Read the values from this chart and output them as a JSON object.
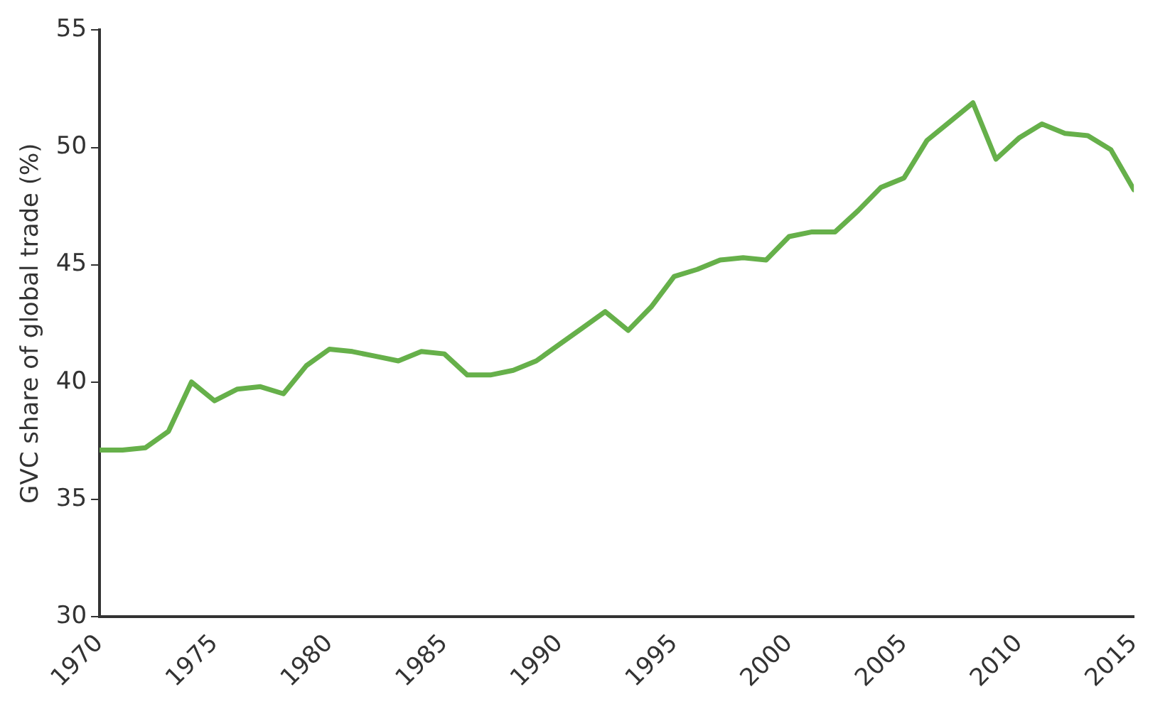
{
  "chart_data": {
    "type": "line",
    "ylabel": "GVC share of global trade (%)",
    "x": [
      1970,
      1971,
      1972,
      1973,
      1974,
      1975,
      1976,
      1977,
      1978,
      1979,
      1980,
      1981,
      1982,
      1983,
      1984,
      1985,
      1986,
      1987,
      1988,
      1989,
      1990,
      1991,
      1992,
      1993,
      1994,
      1995,
      1996,
      1997,
      1998,
      1999,
      2000,
      2001,
      2002,
      2003,
      2004,
      2005,
      2006,
      2007,
      2008,
      2009,
      2010,
      2011,
      2012,
      2013,
      2014,
      2015
    ],
    "series": [
      {
        "color": "#66b04a",
        "values": [
          37.1,
          37.1,
          37.2,
          37.9,
          40.0,
          39.2,
          39.7,
          39.8,
          39.5,
          40.7,
          41.4,
          41.3,
          41.1,
          40.9,
          41.3,
          41.2,
          40.3,
          40.3,
          40.5,
          40.9,
          41.6,
          42.3,
          43.0,
          42.2,
          43.2,
          44.5,
          44.8,
          45.2,
          45.3,
          45.2,
          46.2,
          46.4,
          46.4,
          47.3,
          48.3,
          48.7,
          50.3,
          51.1,
          51.9,
          49.5,
          50.4,
          51.0,
          50.6,
          50.5,
          49.9,
          48.2
        ]
      }
    ],
    "xlim": [
      1970,
      2015
    ],
    "xticks": [
      1970,
      1975,
      1980,
      1985,
      1990,
      1995,
      2000,
      2005,
      2010,
      2015
    ],
    "ylim": [
      30,
      55
    ],
    "yticks": [
      30,
      35,
      40,
      45,
      50,
      55
    ],
    "grid": false,
    "legend": false,
    "marker": "none",
    "line_style": "solid"
  }
}
